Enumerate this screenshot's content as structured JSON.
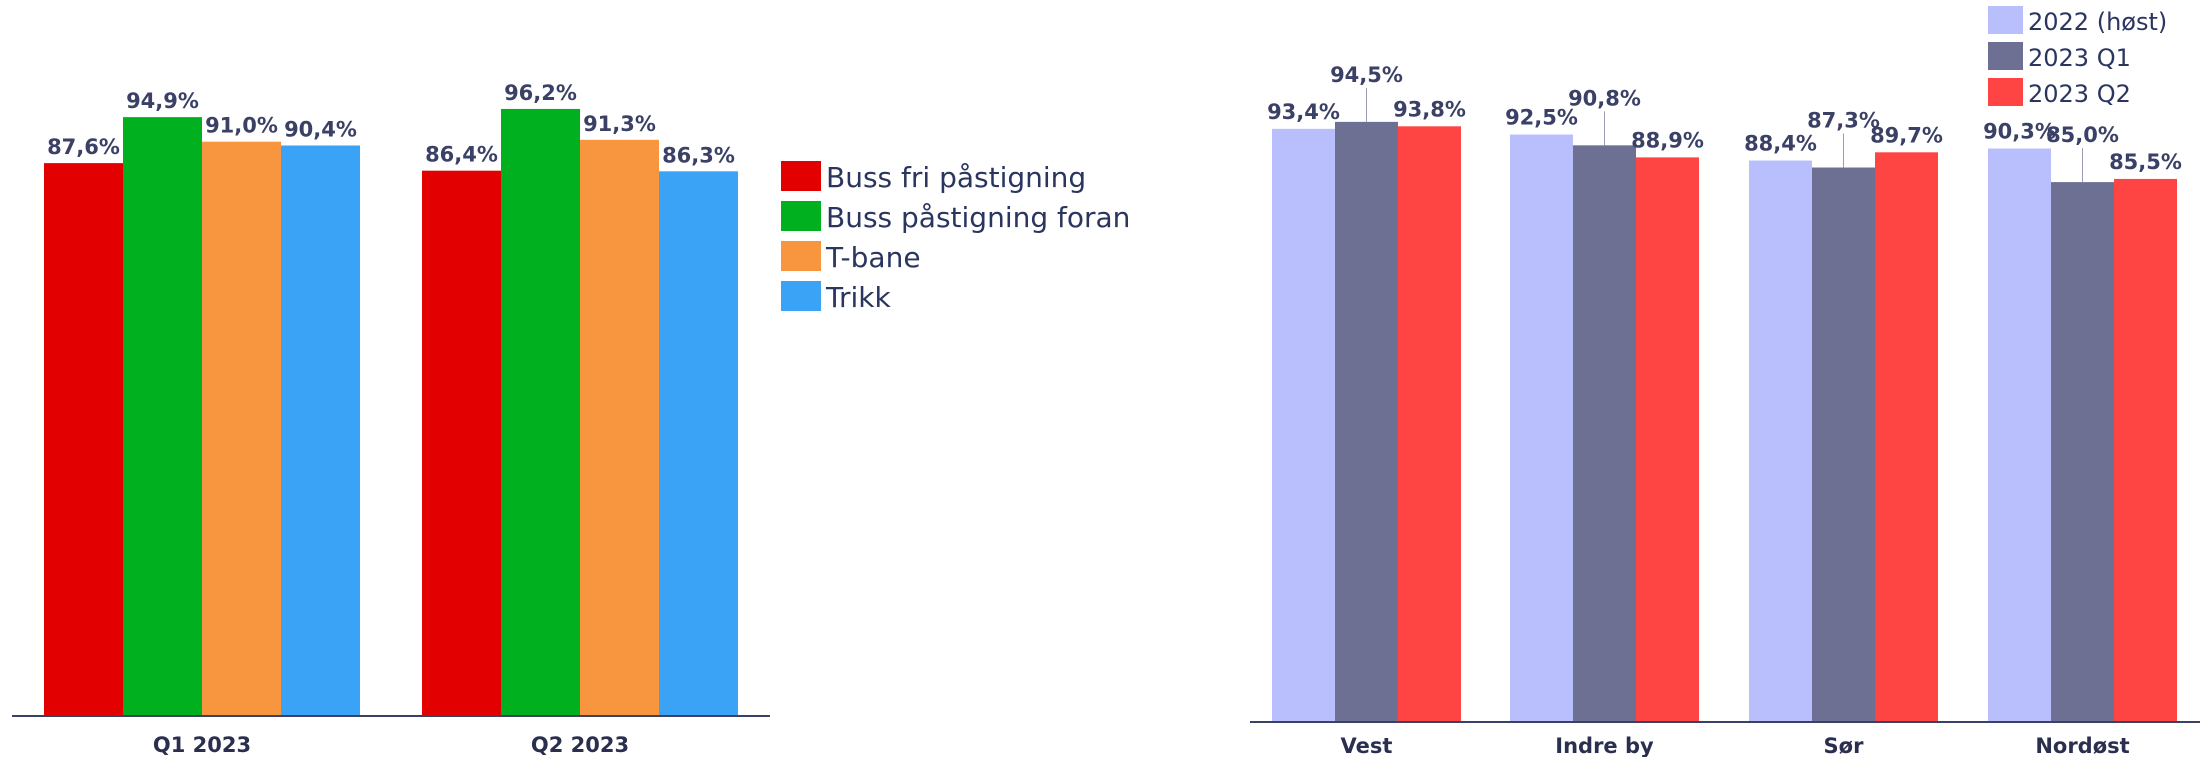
{
  "chart_data": [
    {
      "type": "bar",
      "categories": [
        "Q1 2023",
        "Q2 2023"
      ],
      "series": [
        {
          "name": "Buss fri påstigning",
          "color": "#e30000",
          "values": [
            87.6,
            86.4
          ],
          "labels": [
            "87,6%",
            "86,4%"
          ]
        },
        {
          "name": "Buss påstigning foran",
          "color": "#00b01e",
          "values": [
            94.9,
            96.2
          ],
          "labels": [
            "94,9%",
            "96,2%"
          ]
        },
        {
          "name": "T-bane",
          "color": "#f7963e",
          "values": [
            91.0,
            91.3
          ],
          "labels": [
            "91,0%",
            "91,3%"
          ]
        },
        {
          "name": "Trikk",
          "color": "#3aa3f5",
          "values": [
            90.4,
            86.3
          ],
          "labels": [
            "90,4%",
            "86,3%"
          ]
        }
      ],
      "legend_position": "right",
      "grid": false
    },
    {
      "type": "bar",
      "categories": [
        "Vest",
        "Indre by",
        "Sør",
        "Nordøst"
      ],
      "series": [
        {
          "name": "2022 (høst)",
          "color": "#b8bffc",
          "values": [
            93.4,
            92.5,
            88.4,
            90.3
          ],
          "labels": [
            "93,4%",
            "92,5%",
            "88,4%",
            "90,3%"
          ]
        },
        {
          "name": "2023 Q1",
          "color": "#6d7093",
          "values": [
            94.5,
            90.8,
            87.3,
            85.0
          ],
          "labels": [
            "94,5%",
            "90,8%",
            "87,3%",
            "85,0%"
          ]
        },
        {
          "name": "2023 Q2",
          "color": "#ff4444",
          "values": [
            93.8,
            88.9,
            89.7,
            85.5
          ],
          "labels": [
            "93,8%",
            "88,9%",
            "89,7%",
            "85,5%"
          ]
        }
      ],
      "legend_position": "top-right",
      "grid": false
    }
  ]
}
